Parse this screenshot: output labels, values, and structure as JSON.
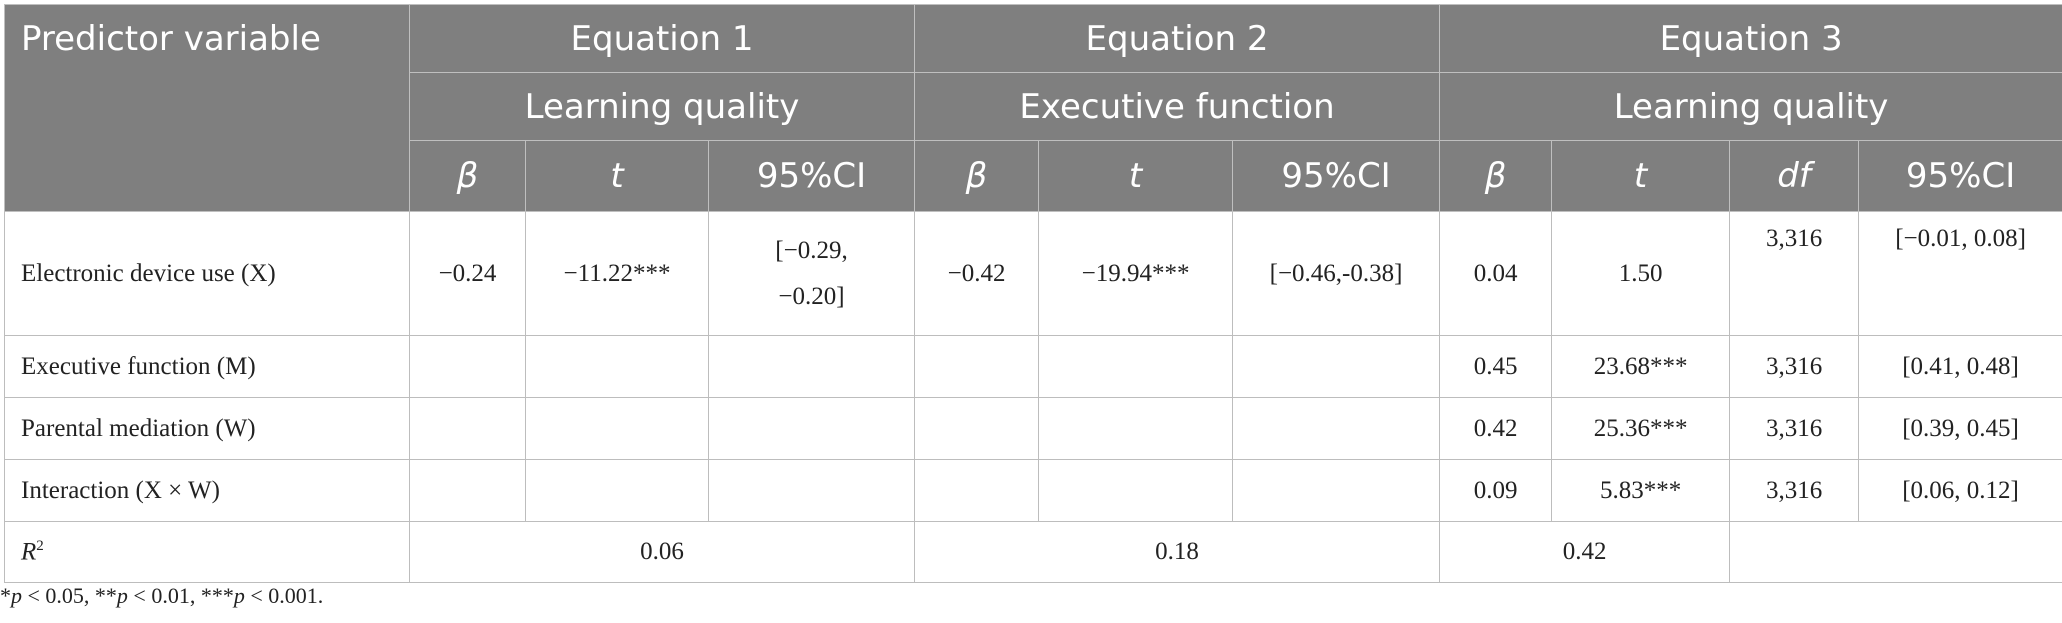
{
  "header": {
    "predictor_label": "Predictor variable",
    "equations": [
      {
        "name": "Equation 1",
        "outcome": "Learning quality",
        "cols": [
          "β",
          "t",
          "95%CI"
        ]
      },
      {
        "name": "Equation 2",
        "outcome": "Executive function",
        "cols": [
          "β",
          "t",
          "95%CI"
        ]
      },
      {
        "name": "Equation 3",
        "outcome": "Learning quality",
        "cols": [
          "β",
          "t",
          "df",
          "95%CI"
        ]
      }
    ]
  },
  "rows": [
    {
      "label": "Electronic device use (X)",
      "e1_beta": "−0.24",
      "e1_t": "−11.22***",
      "e1_ci_line1": "[−0.29,",
      "e1_ci_line2": "−0.20]",
      "e2_beta": "−0.42",
      "e2_t": "−19.94***",
      "e2_ci": "[−0.46,-0.38]",
      "e3_beta": "0.04",
      "e3_t": "1.50",
      "e3_df": "3,316",
      "e3_ci": "[−0.01, 0.08]"
    },
    {
      "label": "Executive function (M)",
      "e3_beta": "0.45",
      "e3_t": "23.68***",
      "e3_df": "3,316",
      "e3_ci": "[0.41, 0.48]"
    },
    {
      "label": "Parental mediation (W)",
      "e3_beta": "0.42",
      "e3_t": "25.36***",
      "e3_df": "3,316",
      "e3_ci": "[0.39, 0.45]"
    },
    {
      "label": "Interaction (X × W)",
      "e3_beta": "0.09",
      "e3_t": "5.83***",
      "e3_df": "3,316",
      "e3_ci": "[0.06, 0.12]"
    }
  ],
  "r2": {
    "label": "R",
    "sup": "2",
    "e1": "0.06",
    "e2": "0.18",
    "e3": "0.42"
  },
  "note": {
    "p1_sym": "*",
    "p1_var": "p",
    "p1_text": " < 0.05, ",
    "p2_sym": "**",
    "p2_var": "p",
    "p2_text": " < 0.01, ",
    "p3_sym": "***",
    "p3_var": "p",
    "p3_text": " < 0.001."
  }
}
